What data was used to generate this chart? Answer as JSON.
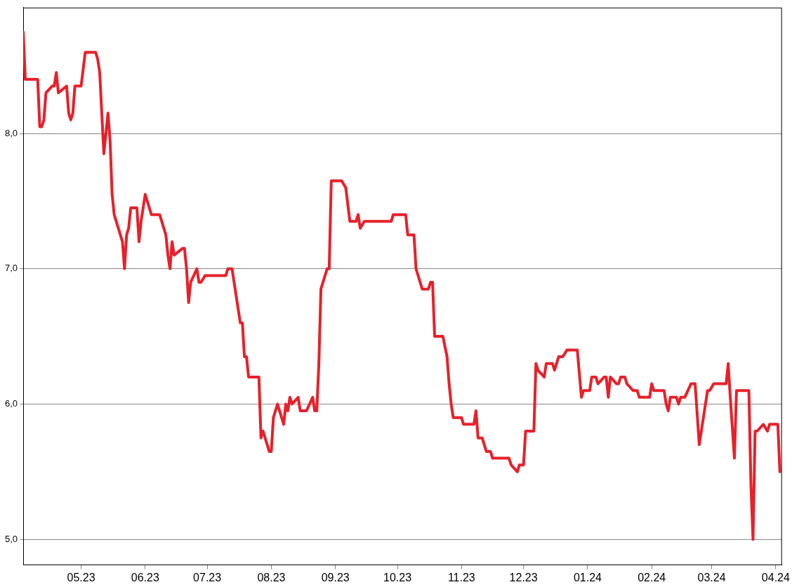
{
  "chart_data": {
    "type": "line",
    "x": [
      "2023-04-03",
      "2023-04-04",
      "2023-04-10",
      "2023-04-11",
      "2023-04-12",
      "2023-04-13",
      "2023-04-14",
      "2023-04-17",
      "2023-04-18",
      "2023-04-19",
      "2023-04-20",
      "2023-04-24",
      "2023-04-25",
      "2023-04-26",
      "2023-04-27",
      "2023-04-28",
      "2023-05-01",
      "2023-05-03",
      "2023-05-08",
      "2023-05-09",
      "2023-05-10",
      "2023-05-12",
      "2023-05-13",
      "2023-05-14",
      "2023-05-15",
      "2023-05-16",
      "2023-05-17",
      "2023-05-21",
      "2023-05-22",
      "2023-05-23",
      "2023-05-24",
      "2023-05-25",
      "2023-05-28",
      "2023-05-29",
      "2023-05-30",
      "2023-06-01",
      "2023-06-04",
      "2023-06-08",
      "2023-06-11",
      "2023-06-12",
      "2023-06-13",
      "2023-06-14",
      "2023-06-15",
      "2023-06-19",
      "2023-06-20",
      "2023-06-21",
      "2023-06-22",
      "2023-06-23",
      "2023-06-26",
      "2023-06-27",
      "2023-06-28",
      "2023-06-30",
      "2023-07-10",
      "2023-07-11",
      "2023-07-13",
      "2023-07-17",
      "2023-07-18",
      "2023-07-19",
      "2023-07-20",
      "2023-07-21",
      "2023-07-26",
      "2023-07-27",
      "2023-07-28",
      "2023-07-31",
      "2023-08-01",
      "2023-08-02",
      "2023-08-04",
      "2023-08-07",
      "2023-08-08",
      "2023-08-09",
      "2023-08-10",
      "2023-08-11",
      "2023-08-14",
      "2023-08-15",
      "2023-08-18",
      "2023-08-21",
      "2023-08-22",
      "2023-08-23",
      "2023-08-24",
      "2023-08-25",
      "2023-08-28",
      "2023-08-29",
      "2023-08-30",
      "2023-09-04",
      "2023-09-06",
      "2023-09-08",
      "2023-09-11",
      "2023-09-12",
      "2023-09-13",
      "2023-09-15",
      "2023-09-17",
      "2023-09-28",
      "2023-09-29",
      "2023-10-05",
      "2023-10-06",
      "2023-10-09",
      "2023-10-10",
      "2023-10-11",
      "2023-10-13",
      "2023-10-16",
      "2023-10-17",
      "2023-10-18",
      "2023-10-19",
      "2023-10-23",
      "2023-10-25",
      "2023-10-26",
      "2023-10-27",
      "2023-10-28",
      "2023-11-01",
      "2023-11-02",
      "2023-11-07",
      "2023-11-08",
      "2023-11-09",
      "2023-11-11",
      "2023-11-13",
      "2023-11-15",
      "2023-11-16",
      "2023-11-24",
      "2023-11-25",
      "2023-11-28",
      "2023-11-29",
      "2023-12-01",
      "2023-12-02",
      "2023-12-06",
      "2023-12-07",
      "2023-12-08",
      "2023-12-11",
      "2023-12-12",
      "2023-12-15",
      "2023-12-16",
      "2023-12-18",
      "2023-12-20",
      "2023-12-22",
      "2023-12-27",
      "2023-12-29",
      "2023-12-30",
      "2024-01-02",
      "2024-01-03",
      "2024-01-05",
      "2024-01-06",
      "2024-01-09",
      "2024-01-10",
      "2024-01-11",
      "2024-01-12",
      "2024-01-15",
      "2024-01-16",
      "2024-01-17",
      "2024-01-19",
      "2024-01-20",
      "2024-01-23",
      "2024-01-25",
      "2024-01-26",
      "2024-01-31",
      "2024-02-01",
      "2024-02-02",
      "2024-02-07",
      "2024-02-08",
      "2024-02-09",
      "2024-02-10",
      "2024-02-13",
      "2024-02-14",
      "2024-02-15",
      "2024-02-17",
      "2024-02-20",
      "2024-02-22",
      "2024-02-24",
      "2024-02-27",
      "2024-02-28",
      "2024-02-29",
      "2024-03-02",
      "2024-03-08",
      "2024-03-09",
      "2024-03-10",
      "2024-03-12",
      "2024-03-13",
      "2024-03-19",
      "2024-03-20",
      "2024-03-21",
      "2024-03-22",
      "2024-03-23",
      "2024-03-26",
      "2024-03-28",
      "2024-03-29",
      "2024-04-02",
      "2024-04-03"
    ],
    "series": [
      {
        "color": "#e8202a",
        "values": [
          8.75,
          8.4,
          8.4,
          8.05,
          8.05,
          8.1,
          8.3,
          8.35,
          8.35,
          8.45,
          8.3,
          8.35,
          8.15,
          8.1,
          8.15,
          8.35,
          8.35,
          8.6,
          8.6,
          8.55,
          8.45,
          7.85,
          8.0,
          8.15,
          7.95,
          7.55,
          7.4,
          7.2,
          7.0,
          7.25,
          7.3,
          7.45,
          7.45,
          7.2,
          7.35,
          7.55,
          7.4,
          7.4,
          7.25,
          7.1,
          7.0,
          7.2,
          7.1,
          7.15,
          7.15,
          7.0,
          6.75,
          6.9,
          7.0,
          6.9,
          6.9,
          6.95,
          6.95,
          7.0,
          7.0,
          6.6,
          6.6,
          6.35,
          6.35,
          6.2,
          6.2,
          5.75,
          5.8,
          5.65,
          5.65,
          5.9,
          6.0,
          5.85,
          6.0,
          5.95,
          6.05,
          6.0,
          6.05,
          5.95,
          5.95,
          6.05,
          5.95,
          5.95,
          6.3,
          6.85,
          7.0,
          7.0,
          7.65,
          7.65,
          7.6,
          7.35,
          7.35,
          7.4,
          7.3,
          7.35,
          7.35,
          7.35,
          7.4,
          7.4,
          7.25,
          7.25,
          7.0,
          6.95,
          6.85,
          6.85,
          6.9,
          6.9,
          6.5,
          6.5,
          6.35,
          6.15,
          6.0,
          5.9,
          5.9,
          5.85,
          5.85,
          5.95,
          5.75,
          5.75,
          5.65,
          5.65,
          5.6,
          5.6,
          5.55,
          5.5,
          5.55,
          5.55,
          5.8,
          5.8,
          6.3,
          6.25,
          6.2,
          6.3,
          6.3,
          6.25,
          6.35,
          6.35,
          6.4,
          6.4,
          6.05,
          6.1,
          6.1,
          6.2,
          6.2,
          6.15,
          6.2,
          6.2,
          6.05,
          6.2,
          6.15,
          6.15,
          6.2,
          6.2,
          6.15,
          6.1,
          6.1,
          6.05,
          6.05,
          6.15,
          6.1,
          6.1,
          6.0,
          5.95,
          6.05,
          6.05,
          6.0,
          6.05,
          6.05,
          6.15,
          6.15,
          5.7,
          6.0,
          6.1,
          6.1,
          6.15,
          6.15,
          6.3,
          6.05,
          5.6,
          6.1,
          6.1,
          5.4,
          5.0,
          5.8,
          5.8,
          5.85,
          5.8,
          5.85,
          5.85,
          5.5
        ]
      }
    ],
    "xlim": [
      "2023-04-03",
      "2024-04-04"
    ],
    "xticks": [
      {
        "value": "2023-05-01",
        "label": "05.23"
      },
      {
        "value": "2023-06-01",
        "label": "06.23"
      },
      {
        "value": "2023-07-01",
        "label": "07.23"
      },
      {
        "value": "2023-08-01",
        "label": "08.23"
      },
      {
        "value": "2023-09-01",
        "label": "09.23"
      },
      {
        "value": "2023-10-01",
        "label": "10.23"
      },
      {
        "value": "2023-11-01",
        "label": "11.23"
      },
      {
        "value": "2023-12-01",
        "label": "12.23"
      },
      {
        "value": "2024-01-01",
        "label": "01.24"
      },
      {
        "value": "2024-02-01",
        "label": "02.24"
      },
      {
        "value": "2024-03-01",
        "label": "03.24"
      },
      {
        "value": "2024-04-01",
        "label": "04.24"
      }
    ],
    "ylim": [
      4.81,
      8.93
    ],
    "yticks": [
      {
        "value": 5,
        "label": "5,0"
      },
      {
        "value": 6,
        "label": "6,0"
      },
      {
        "value": 7,
        "label": "7,0"
      },
      {
        "value": 8,
        "label": "8,0"
      }
    ],
    "grid": "y",
    "marker": "none",
    "line_style": "solid"
  }
}
